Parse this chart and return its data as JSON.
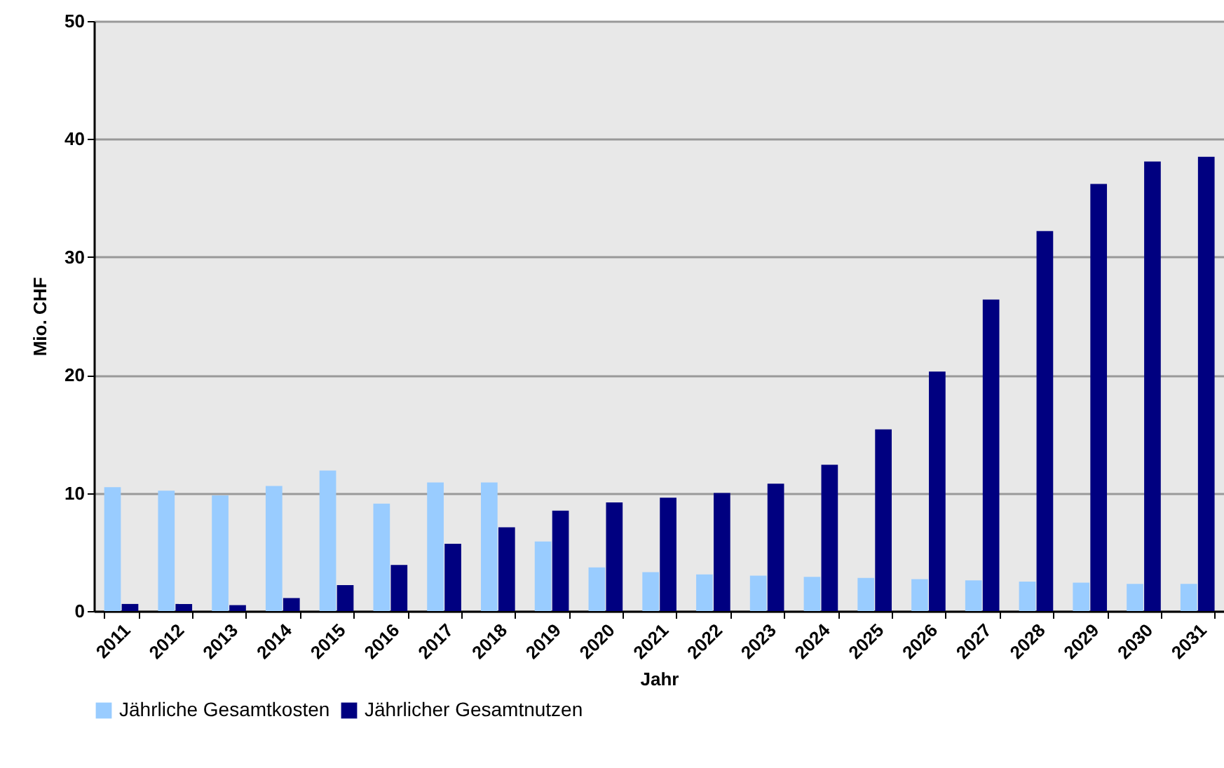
{
  "chart_data": {
    "type": "bar",
    "xlabel": "Jahr",
    "ylabel": "Mio. CHF",
    "categories": [
      "2011",
      "2012",
      "2013",
      "2014",
      "2015",
      "2016",
      "2017",
      "2018",
      "2019",
      "2020",
      "2021",
      "2022",
      "2023",
      "2024",
      "2025",
      "2026",
      "2027",
      "2028",
      "2029",
      "2030",
      "2031"
    ],
    "series": [
      {
        "name": "Jährliche Gesamtkosten",
        "color": "#99ccff",
        "values": [
          10.5,
          10.2,
          9.8,
          10.6,
          11.9,
          9.1,
          10.9,
          10.9,
          5.9,
          3.7,
          3.3,
          3.1,
          3.0,
          2.9,
          2.8,
          2.7,
          2.6,
          2.5,
          2.4,
          2.3,
          2.3
        ]
      },
      {
        "name": "Jährlicher Gesamtnutzen",
        "color": "#000080",
        "values": [
          0.6,
          0.6,
          0.5,
          1.1,
          2.2,
          3.9,
          5.7,
          7.1,
          8.5,
          9.2,
          9.6,
          10.0,
          10.8,
          12.4,
          15.4,
          20.3,
          26.4,
          32.2,
          36.2,
          38.1,
          38.5
        ]
      }
    ],
    "ylim": [
      0,
      50
    ],
    "yticks": [
      0,
      10,
      20,
      30,
      40,
      50
    ],
    "grid": "y",
    "legend": "bottom"
  }
}
